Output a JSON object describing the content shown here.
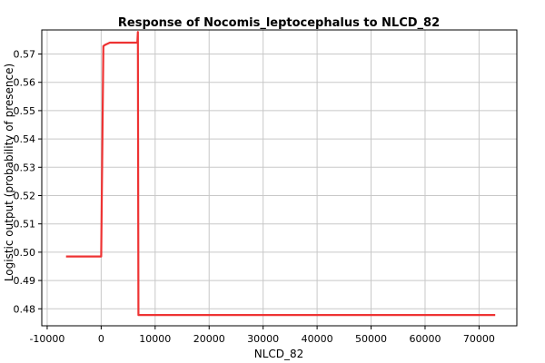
{
  "chart_data": {
    "type": "line",
    "title": "Response of Nocomis_leptocephalus to NLCD_82",
    "xlabel": "NLCD_82",
    "ylabel": "Logistic output (probability of presence)",
    "xlim": [
      -11000,
      77000
    ],
    "ylim": [
      0.474,
      0.5785
    ],
    "x_ticks": [
      -10000,
      0,
      10000,
      20000,
      30000,
      40000,
      50000,
      60000,
      70000
    ],
    "y_ticks": [
      0.48,
      0.49,
      0.5,
      0.51,
      0.52,
      0.53,
      0.54,
      0.55,
      0.56,
      0.57
    ],
    "grid": true,
    "series": [
      {
        "color": "#ee3333",
        "x": [
          -6500,
          0,
          400,
          800,
          1600,
          6700,
          6800,
          6900,
          73000
        ],
        "y": [
          0.4985,
          0.4985,
          0.5728,
          0.5733,
          0.574,
          0.574,
          0.5778,
          0.4778,
          0.4778
        ]
      }
    ]
  }
}
